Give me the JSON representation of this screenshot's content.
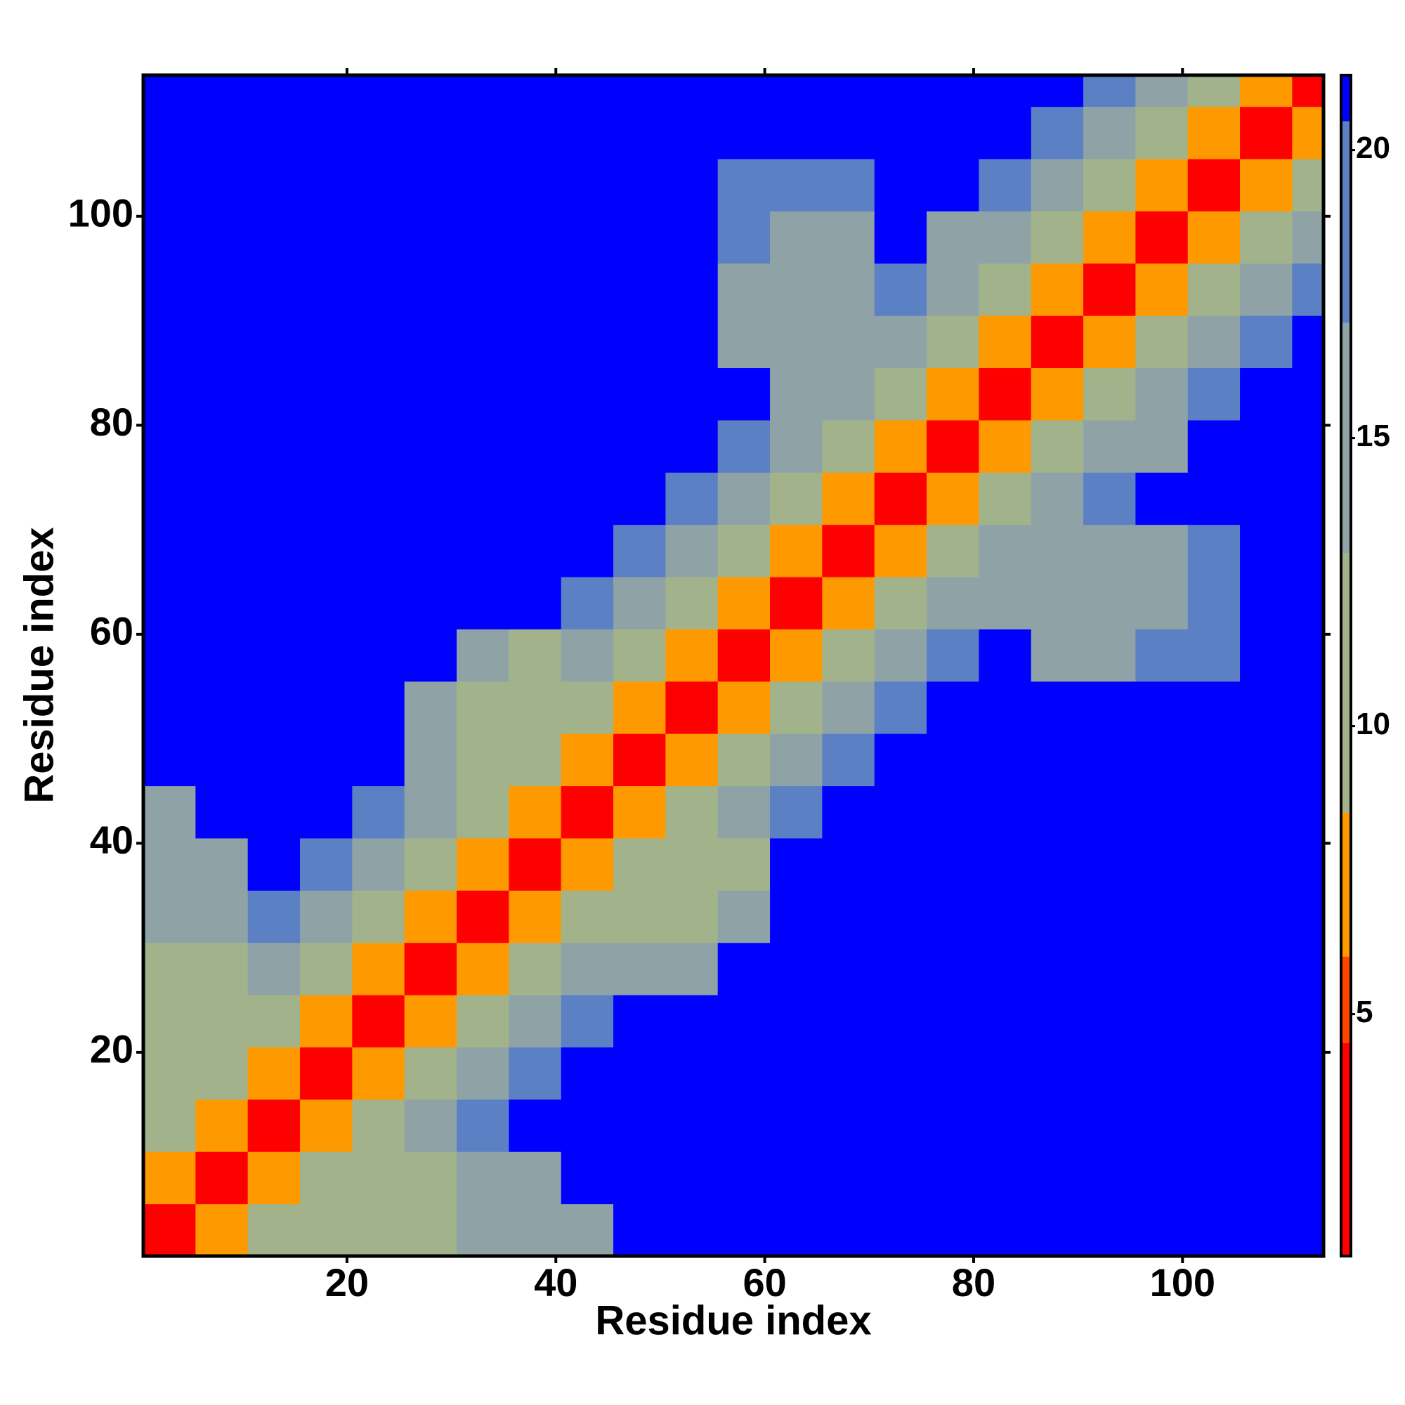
{
  "chart_data": {
    "type": "heatmap",
    "x_label": "Residue index",
    "y_label": "Residue index",
    "x": [
      3,
      8,
      13,
      18,
      23,
      28,
      33,
      38,
      43,
      48,
      53,
      58,
      63,
      68,
      73,
      78,
      83,
      88,
      93,
      98,
      103,
      108,
      113
    ],
    "y": [
      3,
      8,
      13,
      18,
      23,
      28,
      33,
      38,
      43,
      48,
      53,
      58,
      63,
      68,
      73,
      78,
      83,
      88,
      93,
      98,
      103,
      108,
      113
    ],
    "z": [
      [
        2.5,
        7,
        11,
        11,
        11,
        12,
        14,
        14,
        17,
        21,
        21,
        21,
        21,
        21,
        21,
        21,
        21,
        21,
        21,
        21,
        21,
        21,
        21
      ],
      [
        7,
        2.5,
        7,
        11,
        12,
        12,
        14,
        16,
        21,
        21,
        21,
        21,
        21,
        21,
        21,
        21,
        21,
        21,
        21,
        21,
        21,
        21,
        21
      ],
      [
        11,
        7,
        2.5,
        7,
        11,
        15,
        19,
        21,
        21,
        21,
        21,
        21,
        21,
        21,
        21,
        21,
        21,
        21,
        21,
        21,
        21,
        21,
        21
      ],
      [
        11,
        11,
        7,
        2.5,
        7,
        11,
        15,
        19,
        21,
        21,
        21,
        21,
        21,
        21,
        21,
        21,
        21,
        21,
        21,
        21,
        21,
        21,
        21
      ],
      [
        11,
        12,
        11,
        7,
        2.5,
        7,
        11,
        15,
        19,
        21,
        21,
        21,
        21,
        21,
        21,
        21,
        21,
        21,
        21,
        21,
        21,
        21,
        21
      ],
      [
        12,
        12,
        15,
        11,
        7,
        2.5,
        7,
        11,
        15,
        14,
        17,
        21,
        21,
        21,
        21,
        21,
        21,
        21,
        21,
        21,
        21,
        21,
        21
      ],
      [
        14,
        14,
        19,
        15,
        11,
        7,
        2.5,
        7,
        11,
        13,
        13,
        16,
        21,
        21,
        21,
        21,
        21,
        21,
        21,
        21,
        21,
        21,
        21
      ],
      [
        14,
        16,
        21,
        19,
        15,
        11,
        7,
        2.5,
        7,
        11,
        13,
        12,
        21,
        21,
        21,
        21,
        21,
        21,
        21,
        21,
        21,
        21,
        21
      ],
      [
        17,
        21,
        21,
        21,
        19,
        15,
        11,
        7,
        2.5,
        7,
        11,
        15,
        19,
        21,
        21,
        21,
        21,
        21,
        21,
        21,
        21,
        21,
        21
      ],
      [
        21,
        21,
        21,
        21,
        21,
        14,
        13,
        11,
        7,
        2.5,
        7,
        11,
        15,
        19,
        21,
        21,
        21,
        21,
        21,
        21,
        21,
        21,
        21
      ],
      [
        21,
        21,
        21,
        21,
        21,
        17,
        13,
        13,
        11,
        7,
        2.5,
        7,
        11,
        15,
        19,
        21,
        21,
        21,
        21,
        21,
        21,
        21,
        21
      ],
      [
        21,
        21,
        21,
        21,
        21,
        21,
        16,
        12,
        15,
        11,
        7,
        2.5,
        7,
        11,
        15,
        19,
        21,
        16,
        15,
        18,
        18,
        21,
        21
      ],
      [
        21,
        21,
        21,
        21,
        21,
        21,
        21,
        21,
        19,
        15,
        11,
        7,
        2.5,
        7,
        11,
        15,
        17,
        16,
        17,
        17,
        18,
        21,
        21
      ],
      [
        21,
        21,
        21,
        21,
        21,
        21,
        21,
        21,
        21,
        19,
        15,
        11,
        7,
        2.5,
        7,
        11,
        15,
        16,
        17,
        17,
        18,
        21,
        21
      ],
      [
        21,
        21,
        21,
        21,
        21,
        21,
        21,
        21,
        21,
        21,
        19,
        15,
        11,
        7,
        2.5,
        7,
        11,
        15,
        19,
        21,
        21,
        21,
        21
      ],
      [
        21,
        21,
        21,
        21,
        21,
        21,
        21,
        21,
        21,
        21,
        21,
        19,
        15,
        11,
        7,
        2.5,
        7,
        11,
        15,
        17,
        21,
        21,
        21
      ],
      [
        21,
        21,
        21,
        21,
        21,
        21,
        21,
        21,
        21,
        21,
        21,
        21,
        17,
        15,
        11,
        7,
        2.5,
        7,
        11,
        15,
        19,
        21,
        21
      ],
      [
        21,
        21,
        21,
        21,
        21,
        21,
        21,
        21,
        21,
        21,
        21,
        16,
        16,
        16,
        15,
        11,
        7,
        2.5,
        7,
        11,
        15,
        19,
        21
      ],
      [
        21,
        21,
        21,
        21,
        21,
        21,
        21,
        21,
        21,
        21,
        21,
        15,
        17,
        17,
        19,
        15,
        11,
        7,
        2.5,
        7,
        11,
        15,
        18
      ],
      [
        21,
        21,
        21,
        21,
        21,
        21,
        21,
        21,
        21,
        21,
        21,
        18,
        17,
        17,
        21,
        17,
        15,
        11,
        7,
        2.5,
        7,
        11,
        15
      ],
      [
        21,
        21,
        21,
        21,
        21,
        21,
        21,
        21,
        21,
        21,
        21,
        18,
        18,
        18,
        21,
        21,
        19,
        15,
        11,
        7,
        2.5,
        7,
        11
      ],
      [
        21,
        21,
        21,
        21,
        21,
        21,
        21,
        21,
        21,
        21,
        21,
        21,
        21,
        21,
        21,
        21,
        21,
        19,
        15,
        11,
        7,
        2.5,
        7
      ],
      [
        21,
        21,
        21,
        21,
        21,
        21,
        21,
        21,
        21,
        21,
        21,
        21,
        21,
        21,
        21,
        21,
        21,
        21,
        18,
        15,
        11,
        7,
        2.5
      ]
    ],
    "xlim": [
      0.5,
      113.5
    ],
    "ylim": [
      0.5,
      113.5
    ],
    "xticks": [
      20,
      40,
      60,
      80,
      100
    ],
    "yticks": [
      20,
      40,
      60,
      80,
      100
    ],
    "zlim": [
      0.8,
      21.3
    ],
    "zticks": [
      5,
      10,
      15,
      20
    ],
    "color_breaks": [
      4.5,
      6,
      8.5,
      13,
      17,
      20.5
    ],
    "colors": [
      "#ff0000",
      "#ff4500",
      "#ff9900",
      "#a2b38c",
      "#8fa3a6",
      "#5b80c4",
      "#0000ff"
    ]
  }
}
